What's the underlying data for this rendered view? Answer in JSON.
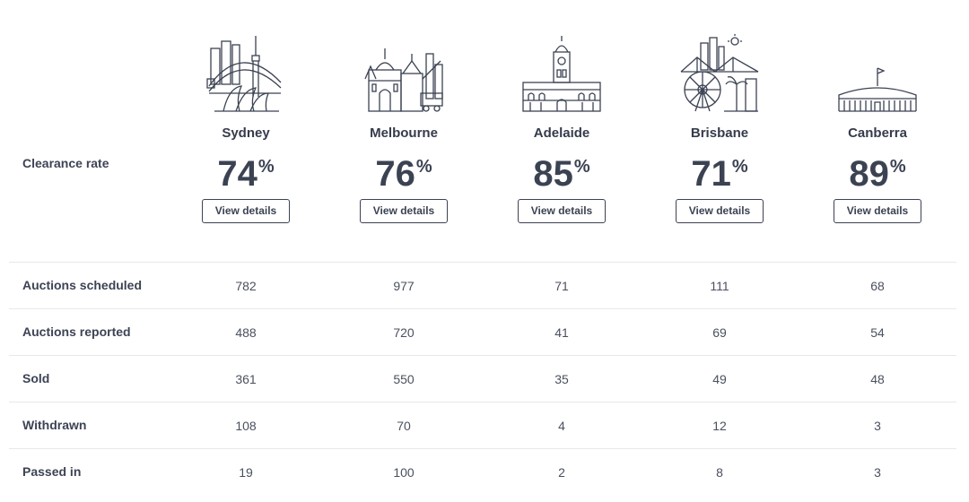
{
  "clearance_label": "Clearance rate",
  "view_details_label": "View details",
  "percent_symbol": "%",
  "cities": [
    {
      "name": "Sydney",
      "rate": "74",
      "illustration": "sydney-skyline-icon"
    },
    {
      "name": "Melbourne",
      "rate": "76",
      "illustration": "melbourne-skyline-icon"
    },
    {
      "name": "Adelaide",
      "rate": "85",
      "illustration": "adelaide-townhall-icon"
    },
    {
      "name": "Brisbane",
      "rate": "71",
      "illustration": "brisbane-skyline-icon"
    },
    {
      "name": "Canberra",
      "rate": "89",
      "illustration": "canberra-parliament-icon"
    }
  ],
  "rows": [
    {
      "label": "Auctions scheduled",
      "values": [
        "782",
        "977",
        "71",
        "111",
        "68"
      ]
    },
    {
      "label": "Auctions reported",
      "values": [
        "488",
        "720",
        "41",
        "69",
        "54"
      ]
    },
    {
      "label": "Sold",
      "values": [
        "361",
        "550",
        "35",
        "49",
        "48"
      ]
    },
    {
      "label": "Withdrawn",
      "values": [
        "108",
        "70",
        "4",
        "12",
        "3"
      ]
    },
    {
      "label": "Passed in",
      "values": [
        "19",
        "100",
        "2",
        "8",
        "3"
      ]
    }
  ],
  "colors": {
    "text": "#3b4252",
    "divider": "#e6e8ec",
    "background": "#ffffff"
  }
}
